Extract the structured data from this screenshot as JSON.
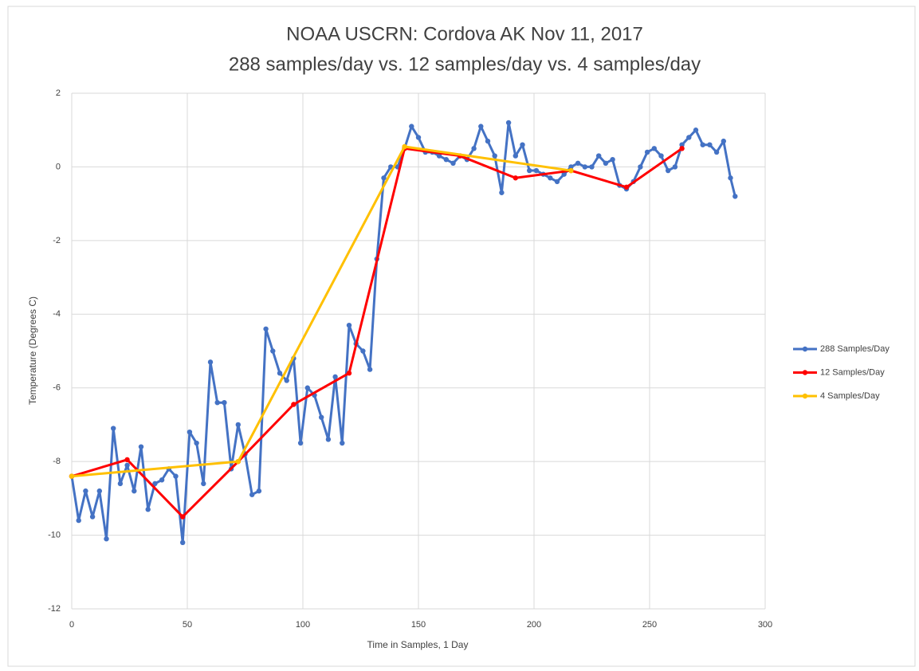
{
  "chart_data": {
    "type": "line",
    "title": "NOAA USCRN:  Cordova AK Nov 11, 2017",
    "subtitle": "288 samples/day vs. 12 samples/day vs. 4 samples/day",
    "x_label": "Time in Samples, 1 Day",
    "y_label": "Temperature  (Degrees C)",
    "xlim": [
      0,
      300
    ],
    "xticks": [
      0,
      50,
      100,
      150,
      200,
      250,
      300
    ],
    "ylim": [
      -12,
      2
    ],
    "yticks": [
      -12,
      -10,
      -8,
      -6,
      -4,
      -2,
      0,
      2
    ],
    "grid": true,
    "legend": "right",
    "series": [
      {
        "name": "288 Samples/Day",
        "color": "#4472c4",
        "x": [
          0,
          3,
          6,
          9,
          12,
          15,
          18,
          21,
          24,
          27,
          30,
          33,
          36,
          39,
          42,
          45,
          48,
          51,
          54,
          57,
          60,
          63,
          66,
          69,
          72,
          75,
          78,
          81,
          84,
          87,
          90,
          93,
          96,
          99,
          102,
          105,
          108,
          111,
          114,
          117,
          120,
          123,
          126,
          129,
          132,
          135,
          138,
          141,
          144,
          147,
          150,
          153,
          156,
          159,
          162,
          165,
          168,
          171,
          174,
          177,
          180,
          183,
          186,
          189,
          192,
          195,
          198,
          201,
          204,
          207,
          210,
          213,
          216,
          219,
          222,
          225,
          228,
          231,
          234,
          237,
          240,
          243,
          246,
          249,
          252,
          255,
          258,
          261,
          264,
          267,
          270,
          273,
          276,
          279,
          282,
          285,
          287
        ],
        "values": [
          -8.4,
          -9.6,
          -8.8,
          -9.5,
          -8.8,
          -10.1,
          -7.1,
          -8.6,
          -8.1,
          -8.8,
          -7.6,
          -9.3,
          -8.6,
          -8.5,
          -8.2,
          -8.4,
          -10.2,
          -7.2,
          -7.5,
          -8.6,
          -5.3,
          -6.4,
          -6.4,
          -8.2,
          -7.0,
          -7.8,
          -8.9,
          -8.8,
          -4.4,
          -5.0,
          -5.6,
          -5.8,
          -5.2,
          -7.5,
          -6.0,
          -6.2,
          -6.8,
          -7.4,
          -5.7,
          -7.5,
          -4.3,
          -4.8,
          -5.0,
          -5.5,
          -2.5,
          -0.3,
          0.0,
          0.0,
          0.5,
          1.1,
          0.8,
          0.4,
          0.4,
          0.3,
          0.2,
          0.1,
          0.3,
          0.2,
          0.5,
          1.1,
          0.7,
          0.3,
          -0.7,
          1.2,
          0.3,
          0.6,
          -0.1,
          -0.1,
          -0.2,
          -0.3,
          -0.4,
          -0.2,
          0.0,
          0.1,
          0.0,
          0.0,
          0.3,
          0.1,
          0.2,
          -0.5,
          -0.6,
          -0.4,
          0.0,
          0.4,
          0.5,
          0.3,
          -0.1,
          0.0,
          0.6,
          0.8,
          1.0,
          0.6,
          0.6,
          0.4,
          0.7,
          -0.3,
          -0.8
        ]
      },
      {
        "name": "12 Samples/Day",
        "color": "#ff0000",
        "x": [
          0,
          24,
          48,
          72,
          96,
          120,
          144,
          168,
          192,
          216,
          240,
          264
        ],
        "values": [
          -8.4,
          -7.95,
          -9.5,
          -8.0,
          -6.45,
          -5.6,
          0.5,
          0.3,
          -0.3,
          -0.1,
          -0.55,
          0.5
        ]
      },
      {
        "name": "4 Samples/Day",
        "color": "#ffc000",
        "x": [
          0,
          72,
          144,
          216
        ],
        "values": [
          -8.4,
          -8.0,
          0.55,
          -0.1
        ]
      }
    ]
  }
}
